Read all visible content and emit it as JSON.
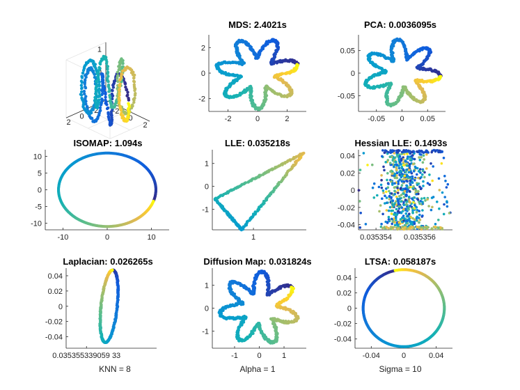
{
  "figure": {
    "panels": [
      {
        "id": "p0",
        "title": "",
        "xticks": [
          "-2",
          "0",
          "2"
        ],
        "yticks": [
          "1",
          "0",
          "-1"
        ],
        "zticks": [
          "2",
          "0",
          "-2"
        ],
        "footer": ""
      },
      {
        "id": "p1",
        "title": "MDS: 2.4021s",
        "xticks": [
          "-2",
          "0",
          "2"
        ],
        "yticks": [
          "2",
          "0",
          "-2"
        ],
        "footer": ""
      },
      {
        "id": "p2",
        "title": "PCA: 0.0036095s",
        "xticks": [
          "-0.05",
          "0",
          "0.05"
        ],
        "yticks": [
          "0.05",
          "0",
          "-0.05"
        ],
        "footer": ""
      },
      {
        "id": "p3",
        "title": "ISOMAP: 1.094s",
        "xticks": [
          "-10",
          "0",
          "10"
        ],
        "yticks": [
          "10",
          "5",
          "0",
          "-5",
          "-10"
        ],
        "footer": ""
      },
      {
        "id": "p4",
        "title": "LLE: 0.035218s",
        "xticks": [
          "1"
        ],
        "yticks": [
          "1",
          "0",
          "-1"
        ],
        "footer": ""
      },
      {
        "id": "p5",
        "title": "Hessian LLE: 0.1493s",
        "xticks": [
          "0.035354",
          "0.035356"
        ],
        "yticks": [
          "0.04",
          "0.02",
          "0",
          "-0.02",
          "-0.04"
        ],
        "footer": ""
      },
      {
        "id": "p6",
        "title": "Laplacian: 0.026265s",
        "xticks": [
          "0.035355339059 33"
        ],
        "yticks": [
          "0.04",
          "0.02",
          "0",
          "-0.02",
          "-0.04"
        ],
        "footer": "KNN = 8"
      },
      {
        "id": "p7",
        "title": "Diffusion Map: 0.031824s",
        "xticks": [
          "-1",
          "0",
          "1"
        ],
        "yticks": [
          "1",
          "0",
          "-1"
        ],
        "footer": "Alpha = 1"
      },
      {
        "id": "p8",
        "title": "LTSA: 0.058187s",
        "xticks": [
          "-0.04",
          "0",
          "0.04"
        ],
        "yticks": [
          "0.04",
          "0.02",
          "0",
          "-0.02",
          "-0.04"
        ],
        "footer": "Sigma = 10"
      }
    ]
  },
  "chart_data": [
    {
      "type": "scatter",
      "projection": "3d",
      "title": "",
      "shape": "intertwined rings (3D toroidal curve)",
      "xlim": [
        -3,
        3
      ],
      "ylim": [
        -3,
        3
      ],
      "zlim": [
        -1.3,
        1.3
      ],
      "colormap": "parula"
    },
    {
      "type": "scatter",
      "title": "MDS: 2.4021s",
      "shape": "seven-petal flower",
      "petals": 7,
      "outer_radius": 2.8,
      "inner_radius": 1.2,
      "xlim": [
        -3.3,
        3.3
      ],
      "ylim": [
        -3,
        3
      ],
      "colormap": "parula"
    },
    {
      "type": "scatter",
      "title": "PCA: 0.0036095s",
      "shape": "seven-petal flower",
      "petals": 7,
      "outer_radius": 0.075,
      "inner_radius": 0.032,
      "xlim": [
        -0.085,
        0.085
      ],
      "ylim": [
        -0.085,
        0.085
      ],
      "colormap": "parula"
    },
    {
      "type": "scatter",
      "title": "ISOMAP: 1.094s",
      "shape": "circle",
      "radius": 11,
      "xlim": [
        -14,
        14
      ],
      "ylim": [
        -12,
        12
      ],
      "colormap": "parula"
    },
    {
      "type": "scatter",
      "title": "LLE: 0.035218s",
      "shape": "triangle path",
      "vertices": [
        [
          0.35,
          -0.55
        ],
        [
          0.8,
          -1.9
        ],
        [
          1.85,
          1.45
        ]
      ],
      "xlim": [
        0.3,
        1.9
      ],
      "ylim": [
        -1.9,
        1.6
      ],
      "colormap": "parula"
    },
    {
      "type": "scatter",
      "title": "Hessian LLE: 0.1493s",
      "shape": "vertical scatter band",
      "xlim": [
        0.0353532,
        0.0353575
      ],
      "ylim": [
        -0.046,
        0.047
      ],
      "colormap": "parula"
    },
    {
      "type": "scatter",
      "title": "Laplacian: 0.026265s",
      "shape": "narrow closed loop",
      "xlim": [
        -1,
        1
      ],
      "ylim": [
        -0.055,
        0.05
      ],
      "colormap": "parula"
    },
    {
      "type": "scatter",
      "title": "Diffusion Map: 0.031824s",
      "shape": "seven-petal flower",
      "petals": 7,
      "outer_radius": 1.6,
      "inner_radius": 0.7,
      "xlim": [
        -1.9,
        1.9
      ],
      "ylim": [
        -1.75,
        1.75
      ],
      "colormap": "parula"
    },
    {
      "type": "scatter",
      "title": "LTSA: 0.058187s",
      "shape": "circle",
      "radius": 0.05,
      "xlim": [
        -0.06,
        0.06
      ],
      "ylim": [
        -0.052,
        0.052
      ],
      "colormap": "parula"
    }
  ]
}
